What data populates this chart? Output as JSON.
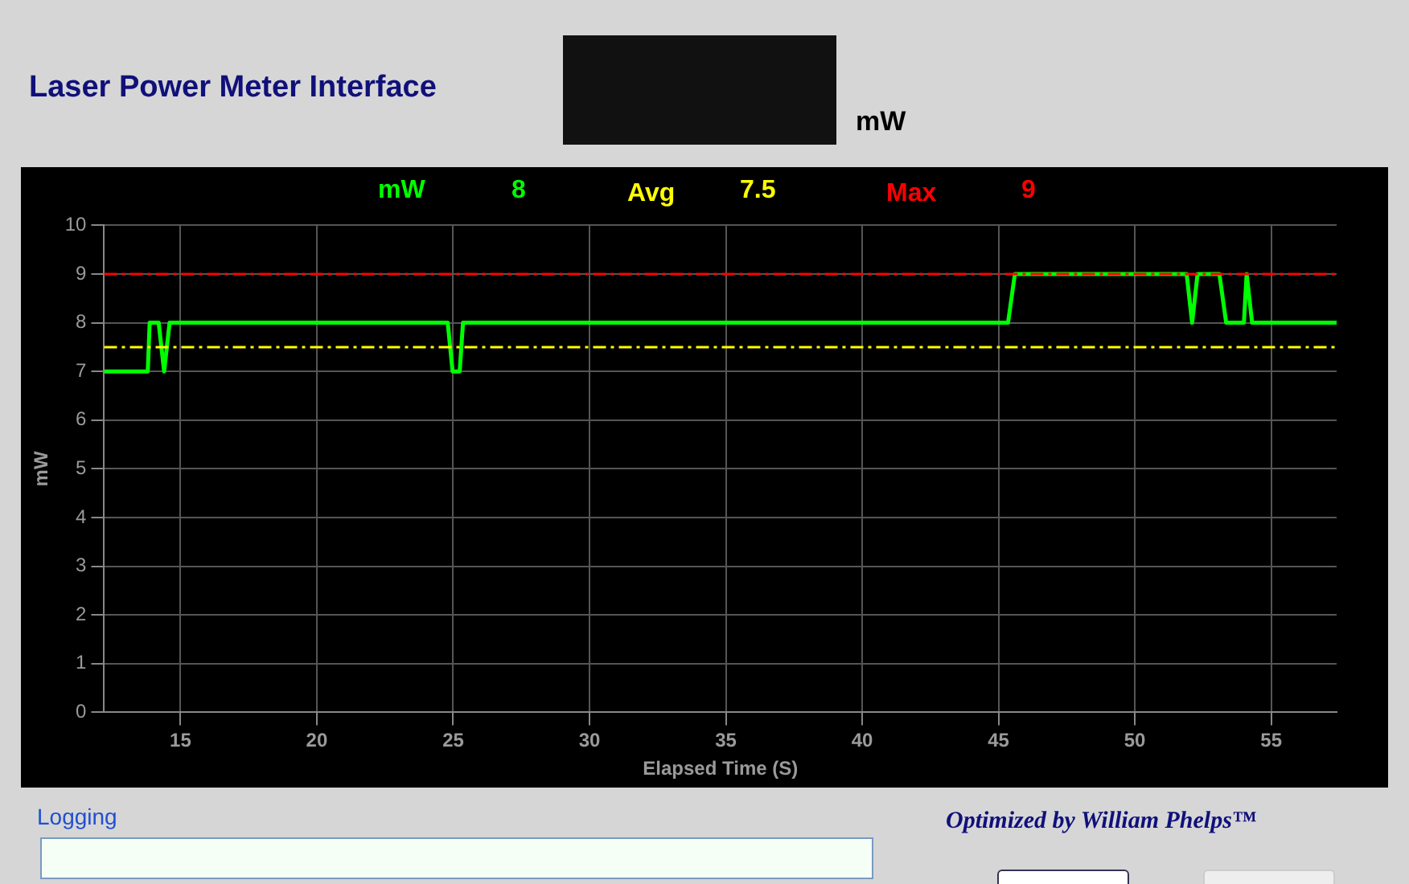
{
  "chart_data": {
    "type": "line",
    "title": "Laser Power Meter Interface",
    "xlabel": "Elapsed Time (S)",
    "ylabel": "mW",
    "series": [
      {
        "name": "mW",
        "color": "#00ff00",
        "x": [
          12.2,
          13.8,
          13.87,
          13.99,
          14.2,
          14.4,
          14.6,
          24.8,
          24.98,
          25.24,
          25.36,
          45.35,
          45.6,
          51.9,
          52.1,
          52.3,
          53.1,
          53.35,
          54.0,
          54.1,
          54.3,
          57.4
        ],
        "values": [
          7,
          7,
          8,
          8,
          8,
          7,
          8,
          8,
          7,
          7,
          8,
          8,
          9,
          9,
          8,
          9,
          9,
          8,
          8,
          9,
          8,
          8
        ]
      }
    ],
    "ref_lines": [
      {
        "axis": "y",
        "value": 7.5,
        "label": "Avg",
        "color": "#ffff00",
        "line_style": "dashed"
      },
      {
        "axis": "y",
        "value": 9,
        "label": "Max",
        "color": "#ff0000",
        "line_style": "dashed"
      }
    ],
    "annotations": [
      "8",
      "mW",
      "Logging",
      "Optimized by William Phelps™",
      "7.5",
      "9"
    ],
    "xlim": [
      12.2,
      57.4
    ],
    "xticks": [
      15,
      20,
      25,
      30,
      35,
      40,
      45,
      50,
      55
    ],
    "ylim": [
      0,
      10
    ],
    "yticks": [
      0,
      1,
      2,
      3,
      4,
      5,
      6,
      7,
      8,
      9,
      10
    ],
    "grid": true,
    "line_style": "solid",
    "marker": "none"
  }
}
